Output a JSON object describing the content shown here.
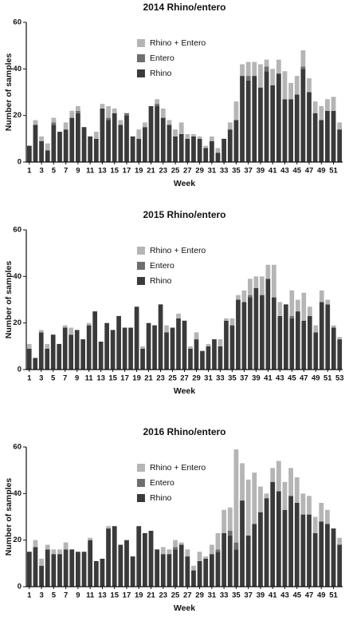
{
  "chart_data": [
    {
      "type": "stacked-bar",
      "title": "2014 Rhino/entero",
      "x_label": "Week",
      "y_label": "Number of samples",
      "categories": [
        1,
        null,
        3,
        null,
        5,
        null,
        7,
        null,
        9,
        null,
        11,
        null,
        13,
        null,
        15,
        null,
        17,
        null,
        19,
        null,
        21,
        null,
        23,
        null,
        25,
        null,
        27,
        null,
        29,
        null,
        31,
        null,
        33,
        null,
        35,
        null,
        37,
        null,
        39,
        null,
        41,
        null,
        43,
        null,
        45,
        null,
        47,
        null,
        49,
        null,
        51,
        null
      ],
      "series": [
        {
          "name": "Rhino",
          "color": "#3a3a3a",
          "values": [
            7,
            16,
            9,
            5,
            16,
            13,
            14,
            19,
            21,
            15,
            11,
            10,
            23,
            18,
            21,
            16,
            20,
            11,
            10,
            15,
            24,
            24,
            19,
            16,
            11,
            12,
            10,
            11,
            10,
            6,
            9,
            4,
            10,
            14,
            18,
            37,
            35,
            37,
            32,
            39,
            33,
            38,
            27,
            27,
            29,
            40,
            30,
            21,
            18,
            22,
            22,
            14
          ]
        },
        {
          "name": "Entero",
          "color": "#6e6e6e",
          "values": [
            0,
            0,
            0,
            0,
            1,
            0,
            0,
            0,
            1,
            0,
            0,
            0,
            0,
            1,
            0,
            0,
            1,
            0,
            0,
            0,
            0,
            1,
            0,
            0,
            0,
            0,
            0,
            0,
            0,
            0,
            0,
            0,
            0,
            0,
            0,
            0,
            2,
            0,
            0,
            2,
            0,
            0,
            0,
            0,
            0,
            1,
            0,
            0,
            0,
            0,
            0,
            0
          ]
        },
        {
          "name": "Rhino + Entero",
          "color": "#b5b5b5",
          "values": [
            0,
            2,
            2,
            3,
            2,
            0,
            3,
            3,
            2,
            0,
            0,
            3,
            2,
            5,
            2,
            2,
            0,
            0,
            4,
            2,
            0,
            2,
            4,
            2,
            3,
            5,
            2,
            1,
            1,
            1,
            2,
            2,
            0,
            3,
            8,
            5,
            6,
            6,
            10,
            3,
            7,
            6,
            12,
            7,
            8,
            7,
            6,
            5,
            6,
            5,
            6,
            3
          ]
        }
      ],
      "ylim": [
        0,
        60
      ],
      "yticks": [
        0,
        20,
        40,
        60
      ],
      "legend": "upper center"
    },
    {
      "type": "stacked-bar",
      "title": "2015 Rhino/entero",
      "x_label": "Week",
      "y_label": "Number of samples",
      "categories": [
        1,
        null,
        3,
        null,
        5,
        null,
        7,
        null,
        9,
        null,
        11,
        null,
        13,
        null,
        15,
        null,
        17,
        null,
        19,
        null,
        21,
        null,
        23,
        null,
        25,
        null,
        27,
        null,
        29,
        null,
        31,
        null,
        33,
        null,
        35,
        null,
        37,
        null,
        39,
        null,
        41,
        null,
        43,
        null,
        45,
        null,
        47,
        null,
        49,
        null,
        51,
        null,
        53
      ],
      "series": [
        {
          "name": "Rhino",
          "color": "#3a3a3a",
          "values": [
            9,
            5,
            16,
            9,
            15,
            11,
            18,
            15,
            17,
            13,
            19,
            25,
            12,
            20,
            17,
            23,
            18,
            18,
            27,
            9,
            20,
            19,
            28,
            16,
            18,
            22,
            21,
            9,
            13,
            8,
            10,
            13,
            10,
            21,
            19,
            30,
            29,
            31,
            35,
            32,
            39,
            31,
            23,
            28,
            22,
            25,
            21,
            23,
            16,
            29,
            28,
            18,
            13
          ]
        },
        {
          "name": "Entero",
          "color": "#6e6e6e",
          "values": [
            0,
            0,
            0,
            0,
            0,
            0,
            0,
            0,
            0,
            0,
            0,
            0,
            0,
            0,
            0,
            0,
            0,
            0,
            0,
            0,
            0,
            0,
            0,
            0,
            0,
            0,
            0,
            0,
            0,
            0,
            0,
            0,
            0,
            0,
            0,
            0,
            0,
            1,
            0,
            0,
            0,
            0,
            0,
            0,
            1,
            0,
            0,
            0,
            0,
            0,
            0,
            0,
            0
          ]
        },
        {
          "name": "Rhino + Entero",
          "color": "#b5b5b5",
          "values": [
            2,
            0,
            1,
            2,
            0,
            0,
            1,
            3,
            0,
            0,
            1,
            0,
            0,
            0,
            0,
            0,
            0,
            0,
            0,
            1,
            0,
            0,
            0,
            3,
            0,
            2,
            0,
            1,
            3,
            0,
            1,
            0,
            3,
            1,
            3,
            2,
            5,
            7,
            5,
            8,
            6,
            14,
            6,
            0,
            11,
            5,
            12,
            4,
            3,
            5,
            2,
            1,
            1
          ]
        }
      ],
      "ylim": [
        0,
        60
      ],
      "yticks": [
        0,
        20,
        40,
        60
      ],
      "legend": "upper center"
    },
    {
      "type": "stacked-bar",
      "title": "2016 Rhino/entero",
      "x_label": "Week",
      "y_label": "Number of samples",
      "categories": [
        1,
        null,
        3,
        null,
        5,
        null,
        7,
        null,
        9,
        null,
        11,
        null,
        13,
        null,
        15,
        null,
        17,
        null,
        19,
        null,
        21,
        null,
        23,
        null,
        25,
        null,
        27,
        null,
        29,
        null,
        31,
        null,
        33,
        null,
        35,
        null,
        37,
        null,
        39,
        null,
        41,
        null,
        43,
        null,
        45,
        null,
        47,
        null,
        49,
        null,
        51,
        null
      ],
      "series": [
        {
          "name": "Rhino",
          "color": "#3a3a3a",
          "values": [
            15,
            17,
            9,
            16,
            14,
            14,
            16,
            16,
            15,
            15,
            20,
            11,
            12,
            25,
            26,
            18,
            20,
            13,
            26,
            23,
            24,
            16,
            14,
            14,
            16,
            18,
            13,
            7,
            11,
            12,
            14,
            15,
            23,
            22,
            16,
            37,
            22,
            27,
            32,
            38,
            45,
            41,
            33,
            39,
            36,
            31,
            31,
            23,
            28,
            27,
            25,
            18
          ]
        },
        {
          "name": "Entero",
          "color": "#6e6e6e",
          "values": [
            0,
            0,
            0,
            0,
            0,
            0,
            0,
            0,
            0,
            0,
            0,
            0,
            0,
            0,
            0,
            0,
            0,
            0,
            0,
            0,
            0,
            0,
            0,
            0,
            1,
            0,
            0,
            0,
            0,
            0,
            0,
            1,
            0,
            2,
            3,
            0,
            0,
            0,
            0,
            0,
            0,
            0,
            0,
            0,
            0,
            0,
            0,
            0,
            0,
            0,
            0,
            0
          ]
        },
        {
          "name": "Rhino + Entero",
          "color": "#b5b5b5",
          "values": [
            0,
            3,
            3,
            2,
            2,
            2,
            3,
            0,
            0,
            0,
            1,
            0,
            0,
            1,
            0,
            0,
            0,
            0,
            0,
            0,
            0,
            0,
            3,
            2,
            3,
            1,
            3,
            2,
            4,
            1,
            4,
            7,
            10,
            10,
            40,
            16,
            24,
            22,
            11,
            2,
            6,
            13,
            12,
            12,
            11,
            9,
            8,
            7,
            8,
            6,
            0,
            3
          ]
        }
      ],
      "ylim": [
        0,
        60
      ],
      "yticks": [
        0,
        20,
        40,
        60
      ],
      "legend": "upper center"
    }
  ]
}
